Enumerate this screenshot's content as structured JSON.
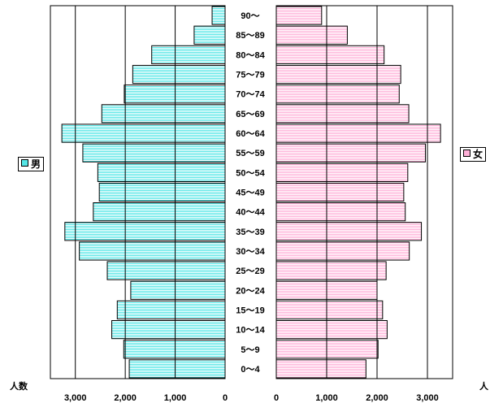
{
  "chart_data": {
    "type": "bar",
    "orientation": "horizontal",
    "categories": [
      "0～4",
      "5～9",
      "10～14",
      "15～19",
      "20～24",
      "25～29",
      "30～34",
      "35～39",
      "40～44",
      "45～49",
      "50～54",
      "55～59",
      "60～64",
      "65～69",
      "70～74",
      "75～79",
      "80～84",
      "85～89",
      "90～"
    ],
    "series": [
      {
        "name": "男",
        "color": "#55e6e6",
        "values": [
          1920,
          2030,
          2270,
          2160,
          1890,
          2360,
          2920,
          3210,
          2640,
          2520,
          2550,
          2850,
          3270,
          2470,
          2020,
          1850,
          1470,
          620,
          260
        ]
      },
      {
        "name": "女",
        "color": "#ffb0d8",
        "values": [
          1780,
          2020,
          2200,
          2110,
          2000,
          2180,
          2640,
          2880,
          2560,
          2530,
          2610,
          2960,
          3260,
          2630,
          2440,
          2470,
          2140,
          1410,
          900
        ]
      }
    ],
    "xlim": [
      0,
      3500
    ],
    "xticks": [
      0,
      1000,
      2000,
      3000
    ],
    "xtick_labels": [
      "0",
      "1,000",
      "2,000",
      "3,000"
    ],
    "xlabel_left": "人数",
    "xlabel_right": "人",
    "grid": true,
    "legend_placement": "sides"
  }
}
